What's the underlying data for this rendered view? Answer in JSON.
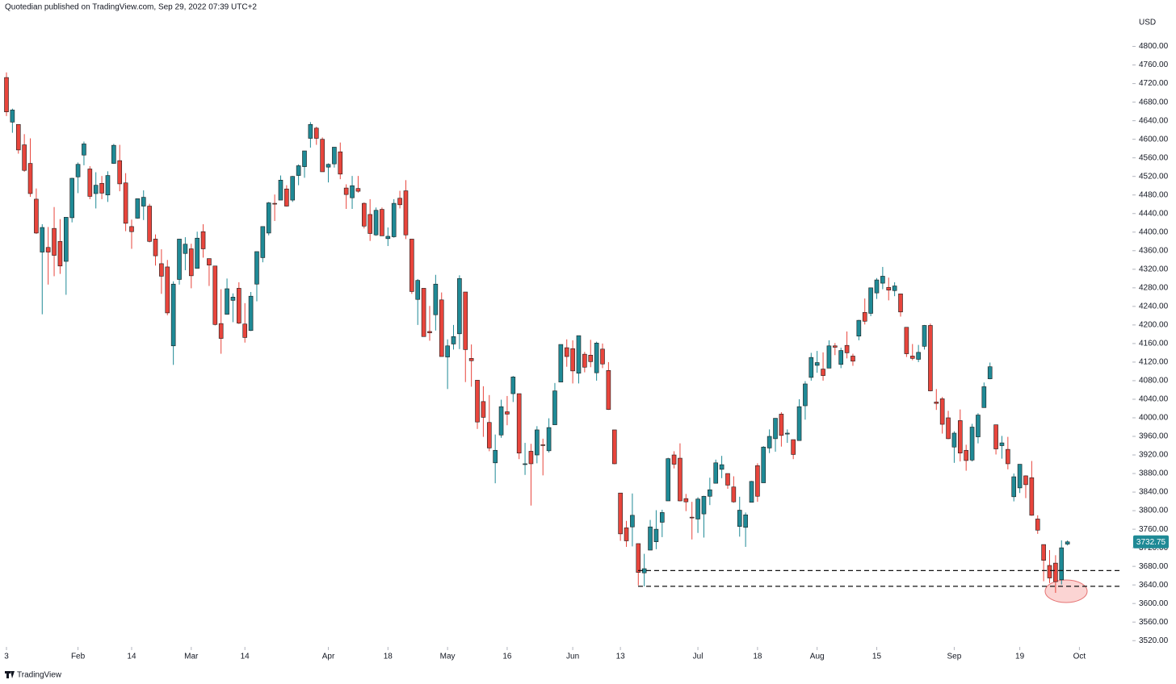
{
  "chart_data": {
    "type": "candlestick",
    "title": "Quotedian published on TradingView.com, Sep 29, 2022 07:39 UTC+2",
    "currency": "USD",
    "logo": "TradingView",
    "up_color": "#1f8a96",
    "down_color": "#e8453c",
    "open": [
      4733,
      4637,
      4632,
      4588,
      4548,
      4471,
      4357,
      4367,
      4408,
      4380,
      4337,
      4431,
      4519,
      4566,
      4536,
      4483,
      4505,
      4480,
      4548,
      4554,
      4506,
      4412,
      4430,
      4456,
      4456,
      4385,
      4332,
      4325,
      4155,
      4298,
      4354,
      4364,
      4322,
      4401,
      4343,
      4327,
      4203,
      4223,
      4253,
      4279,
      4202,
      4188,
      4288,
      4345,
      4398,
      4462,
      4469,
      4493,
      4469,
      4522,
      4541,
      4602,
      4624,
      4600,
      4540,
      4547,
      4573,
      4495,
      4474,
      4494,
      4462,
      4438,
      4394,
      4449,
      4386,
      4390,
      4473,
      4489,
      4385,
      4255,
      4279,
      4186,
      4222,
      4254,
      4131,
      4159,
      4181,
      4271,
      4128,
      4081,
      4035,
      3990,
      3903,
      3963,
      4013,
      4052,
      4052,
      3900,
      3928,
      3920,
      3942,
      3929,
      3985,
      4077,
      4151,
      4149,
      4096,
      4137,
      4135,
      4097,
      4148,
      4102,
      3974,
      3838,
      3763,
      3765,
      3729,
      3666,
      3715,
      3733,
      3775,
      3821,
      3920,
      3913,
      3826,
      3786,
      3782,
      3793,
      3831,
      3859,
      3889,
      3880,
      3851,
      3766,
      3764,
      3818,
      3897,
      3860,
      3935,
      3955,
      4008,
      3965,
      3953,
      3951,
      4026,
      4087,
      4113,
      4105,
      4107,
      4155,
      4115,
      4156,
      4133,
      4176,
      4227,
      4225,
      4269,
      4290,
      4281,
      4274,
      4267,
      4195,
      4133,
      4126,
      4154,
      4199,
      4034,
      4041,
      4000,
      3937,
      3994,
      3930,
      3909,
      3959,
      4022,
      4084,
      3985,
      3940,
      3932,
      3830,
      3849,
      3875,
      3871,
      3782,
      3727,
      3682,
      3687,
      3651,
      3728
    ],
    "high": [
      4744,
      4666,
      4632,
      4611,
      4602,
      4494,
      4417,
      4411,
      4454,
      4428,
      4432,
      4517,
      4550,
      4595,
      4542,
      4529,
      4521,
      4531,
      4590,
      4588,
      4527,
      4427,
      4472,
      4490,
      4461,
      4395,
      4363,
      4340,
      4294,
      4385,
      4389,
      4375,
      4401,
      4417,
      4343,
      4327,
      4277,
      4300,
      4268,
      4292,
      4247,
      4271,
      4358,
      4412,
      4465,
      4481,
      4522,
      4501,
      4521,
      4546,
      4575,
      4637,
      4627,
      4604,
      4548,
      4583,
      4593,
      4503,
      4521,
      4521,
      4464,
      4471,
      4453,
      4453,
      4410,
      4471,
      4489,
      4512,
      4385,
      4299,
      4279,
      4241,
      4308,
      4270,
      4169,
      4200,
      4307,
      4271,
      4158,
      4081,
      4068,
      4049,
      3964,
      4039,
      4047,
      4090,
      4052,
      3946,
      3944,
      3982,
      3955,
      3999,
      4075,
      4158,
      4169,
      4167,
      4177,
      4142,
      4168,
      4164,
      4160,
      4120,
      3974,
      3838,
      3778,
      3837,
      3729,
      3707,
      3780,
      3801,
      3802,
      3914,
      3928,
      3945,
      3836,
      3819,
      3829,
      3832,
      3871,
      3910,
      3918,
      3880,
      3874,
      3830,
      3796,
      3864,
      3902,
      3939,
      3975,
      3999,
      4012,
      3975,
      3953,
      4040,
      4079,
      4140,
      4144,
      4141,
      4167,
      4161,
      4151,
      4186,
      4138,
      4211,
      4257,
      4280,
      4301,
      4325,
      4302,
      4292,
      4267,
      4195,
      4159,
      4157,
      4200,
      4203,
      4062,
      4045,
      4015,
      3971,
      4018,
      3942,
      3987,
      4010,
      4076,
      4119,
      3985,
      3961,
      3959,
      3880,
      3900,
      3876,
      3907,
      3790,
      3727,
      3715,
      3704,
      3736,
      3736
    ],
    "low": [
      4650,
      4614,
      4569,
      4530,
      4476,
      4396,
      4223,
      4287,
      4305,
      4310,
      4265,
      4421,
      4484,
      4544,
      4471,
      4451,
      4471,
      4465,
      4547,
      4488,
      4402,
      4364,
      4429,
      4426,
      4378,
      4328,
      4267,
      4221,
      4114,
      4287,
      4318,
      4279,
      4322,
      4345,
      4284,
      4199,
      4138,
      4223,
      4206,
      4202,
      4162,
      4187,
      4251,
      4335,
      4393,
      4424,
      4469,
      4455,
      4465,
      4501,
      4517,
      4582,
      4588,
      4530,
      4507,
      4539,
      4514,
      4450,
      4450,
      4485,
      4408,
      4381,
      4392,
      4392,
      4370,
      4388,
      4451,
      4385,
      4267,
      4200,
      4175,
      4166,
      4188,
      4132,
      4062,
      4147,
      4148,
      4077,
      4067,
      3976,
      3959,
      3928,
      3859,
      3957,
      3984,
      4034,
      3911,
      3877,
      3811,
      3902,
      3876,
      3925,
      3985,
      4077,
      4110,
      4074,
      4074,
      4098,
      4109,
      4080,
      4107,
      4017,
      3900,
      3735,
      3722,
      3723,
      3639,
      3637,
      3715,
      3717,
      3743,
      3821,
      3891,
      3820,
      3799,
      3738,
      3752,
      3742,
      3812,
      3859,
      3870,
      3847,
      3817,
      3744,
      3722,
      3818,
      3819,
      3860,
      3924,
      3927,
      3938,
      3946,
      3911,
      3951,
      3996,
      4080,
      4097,
      4080,
      4107,
      4135,
      4107,
      4128,
      4112,
      4167,
      4201,
      4219,
      4256,
      4277,
      4253,
      4262,
      4218,
      4131,
      4124,
      4120,
      4147,
      4057,
      4017,
      3966,
      3954,
      3903,
      3906,
      3886,
      3906,
      3945,
      4022,
      4083,
      3921,
      3912,
      3889,
      3820,
      3838,
      3827,
      3789,
      3750,
      3648,
      3644,
      3623,
      3641,
      3725
    ],
    "close": [
      4659,
      4663,
      4577,
      4533,
      4483,
      4398,
      4410,
      4357,
      4350,
      4327,
      4432,
      4516,
      4546,
      4590,
      4477,
      4501,
      4484,
      4522,
      4587,
      4504,
      4419,
      4401,
      4472,
      4475,
      4380,
      4349,
      4305,
      4226,
      4288,
      4385,
      4374,
      4306,
      4387,
      4364,
      4329,
      4201,
      4171,
      4278,
      4260,
      4204,
      4173,
      4262,
      4358,
      4412,
      4463,
      4461,
      4512,
      4456,
      4520,
      4543,
      4575,
      4632,
      4602,
      4530,
      4546,
      4583,
      4525,
      4481,
      4500,
      4488,
      4413,
      4397,
      4447,
      4392,
      4391,
      4462,
      4459,
      4394,
      4272,
      4296,
      4175,
      4183,
      4288,
      4132,
      4155,
      4175,
      4300,
      4147,
      4123,
      3991,
      4001,
      3935,
      3930,
      4024,
      4008,
      4088,
      3924,
      3901,
      3901,
      3974,
      3941,
      3979,
      4058,
      4158,
      4132,
      4101,
      4177,
      4109,
      4121,
      4161,
      4116,
      4018,
      3901,
      3750,
      3735,
      3790,
      3667,
      3675,
      3765,
      3760,
      3796,
      3912,
      3900,
      3821,
      3819,
      3785,
      3825,
      3831,
      3845,
      3903,
      3899,
      3855,
      3819,
      3801,
      3791,
      3863,
      3831,
      3937,
      3960,
      3999,
      3962,
      3967,
      3921,
      4024,
      4073,
      4130,
      4119,
      4091,
      4155,
      4152,
      4145,
      4140,
      4122,
      4210,
      4208,
      4280,
      4297,
      4305,
      4275,
      4284,
      4228,
      4138,
      4128,
      4141,
      4199,
      4058,
      4031,
      3986,
      3955,
      3967,
      3924,
      3908,
      3980,
      4006,
      4067,
      4110,
      3933,
      3946,
      3901,
      3873,
      3900,
      3856,
      3790,
      3758,
      3693,
      3655,
      3647,
      3720,
      3732.75
    ],
    "support_levels": [
      3671,
      3637
    ],
    "xticks": [
      {
        "value": 0,
        "label": "3"
      },
      {
        "value": 12,
        "label": "Feb"
      },
      {
        "value": 21,
        "label": "14"
      },
      {
        "value": 31,
        "label": "Mar"
      },
      {
        "value": 40,
        "label": "14"
      },
      {
        "value": 54,
        "label": "Apr"
      },
      {
        "value": 64,
        "label": "18"
      },
      {
        "value": 74,
        "label": "May"
      },
      {
        "value": 84,
        "label": "16"
      },
      {
        "value": 95,
        "label": "Jun"
      },
      {
        "value": 103,
        "label": "13"
      },
      {
        "value": 116,
        "label": "Jul"
      },
      {
        "value": 126,
        "label": "18"
      },
      {
        "value": 136,
        "label": "Aug"
      },
      {
        "value": 146,
        "label": "15"
      },
      {
        "value": 159,
        "label": "Sep"
      },
      {
        "value": 170,
        "label": "19"
      },
      {
        "value": 180,
        "label": "Oct"
      }
    ],
    "ylim": [
      3510,
      4900
    ],
    "yticks": [
      {
        "value": 3520,
        "label": "3520.00"
      },
      {
        "value": 3560,
        "label": "3560.00"
      },
      {
        "value": 3600,
        "label": "3600.00"
      },
      {
        "value": 3640,
        "label": "3640.00"
      },
      {
        "value": 3680,
        "label": "3680.00"
      },
      {
        "value": 3720,
        "label": "3720.00"
      },
      {
        "value": 3760,
        "label": "3760.00"
      },
      {
        "value": 3800,
        "label": "3800.00"
      },
      {
        "value": 3840,
        "label": "3840.00"
      },
      {
        "value": 3880,
        "label": "3880.00"
      },
      {
        "value": 3920,
        "label": "3920.00"
      },
      {
        "value": 3960,
        "label": "3960.00"
      },
      {
        "value": 4000,
        "label": "4000.00"
      },
      {
        "value": 4040,
        "label": "4040.00"
      },
      {
        "value": 4080,
        "label": "4080.00"
      },
      {
        "value": 4120,
        "label": "4120.00"
      },
      {
        "value": 4160,
        "label": "4160.00"
      },
      {
        "value": 4200,
        "label": "4200.00"
      },
      {
        "value": 4240,
        "label": "4240.00"
      },
      {
        "value": 4280,
        "label": "4280.00"
      },
      {
        "value": 4320,
        "label": "4320.00"
      },
      {
        "value": 4360,
        "label": "4360.00"
      },
      {
        "value": 4400,
        "label": "4400.00"
      },
      {
        "value": 4440,
        "label": "4440.00"
      },
      {
        "value": 4480,
        "label": "4480.00"
      },
      {
        "value": 4520,
        "label": "4520.00"
      },
      {
        "value": 4560,
        "label": "4560.00"
      },
      {
        "value": 4600,
        "label": "4600.00"
      },
      {
        "value": 4640,
        "label": "4640.00"
      },
      {
        "value": 4680,
        "label": "4680.00"
      },
      {
        "value": 4720,
        "label": "4720.00"
      },
      {
        "value": 4760,
        "label": "4760.00"
      },
      {
        "value": 4800,
        "label": "4800.00"
      }
    ]
  }
}
